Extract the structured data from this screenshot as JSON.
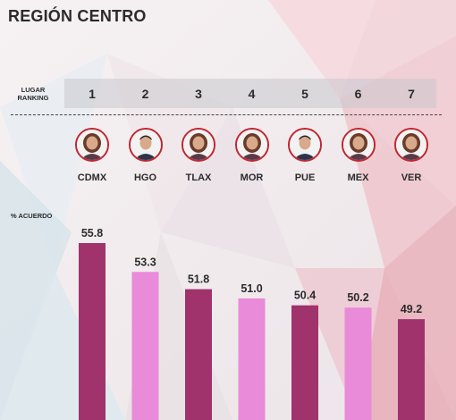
{
  "title": "REGIÓN CENTRO",
  "ranking_header": "LUGAR\nRANKING",
  "y_axis_label": "% ACUERDO",
  "colors": {
    "bar_dark": "#a0336b",
    "bar_light": "#e98bd8",
    "avatar_ring": "#c0252f"
  },
  "chart_data": {
    "type": "bar",
    "categories": [
      "CDMX",
      "HGO",
      "TLAX",
      "MOR",
      "PUE",
      "MEX",
      "VER"
    ],
    "ranks": [
      "1",
      "2",
      "3",
      "4",
      "5",
      "6",
      "7"
    ],
    "values": [
      55.8,
      53.3,
      51.8,
      51.0,
      50.4,
      50.2,
      49.2
    ],
    "value_labels": [
      "55.8",
      "53.3",
      "51.8",
      "51.0",
      "50.4",
      "50.2",
      "49.2"
    ],
    "bar_color_pattern": [
      "dark",
      "light",
      "dark",
      "light",
      "dark",
      "light",
      "dark"
    ],
    "ylabel": "% ACUERDO",
    "grid": false
  },
  "avatars": [
    {
      "icon": "woman-portrait-icon"
    },
    {
      "icon": "man-portrait-icon"
    },
    {
      "icon": "woman-portrait-icon"
    },
    {
      "icon": "woman-portrait-icon"
    },
    {
      "icon": "man-portrait-icon"
    },
    {
      "icon": "woman-portrait-icon"
    },
    {
      "icon": "woman-portrait-icon"
    }
  ]
}
